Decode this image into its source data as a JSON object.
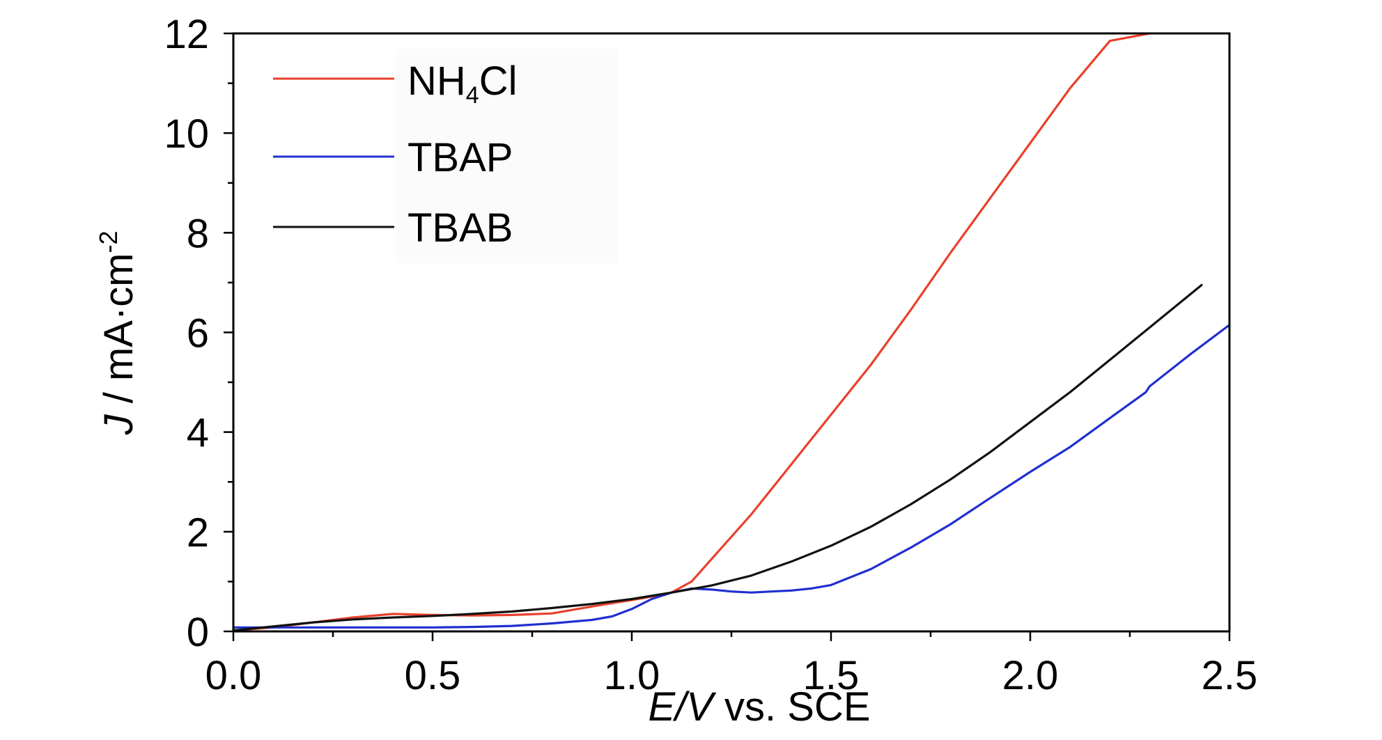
{
  "chart_data": {
    "type": "line",
    "title": "",
    "xlabel": {
      "italic": "E/V",
      "rest": " vs. SCE"
    },
    "ylabel": {
      "italic": "J",
      "rest": " / mA·cm",
      "sup": "-2"
    },
    "xlim": [
      0,
      2.5
    ],
    "ylim": [
      0,
      12
    ],
    "xticks": [
      0.0,
      0.5,
      1.0,
      1.5,
      2.0,
      2.5
    ],
    "xtick_labels": [
      "0.0",
      "0.5",
      "1.0",
      "1.5",
      "2.0",
      "2.5"
    ],
    "yticks": [
      0,
      2,
      4,
      6,
      8,
      10,
      12
    ],
    "ytick_labels": [
      "0",
      "2",
      "4",
      "6",
      "8",
      "10",
      "12"
    ],
    "grid": false,
    "legend_position": "top-left",
    "series": [
      {
        "name": "NH₄Cl",
        "label_main": "NH",
        "label_sub": "4",
        "label_tail": "Cl",
        "color": "#e8412c",
        "x": [
          0.0,
          0.1,
          0.2,
          0.3,
          0.4,
          0.5,
          0.6,
          0.7,
          0.8,
          0.9,
          1.0,
          1.05,
          1.1,
          1.15,
          1.2,
          1.3,
          1.4,
          1.5,
          1.6,
          1.7,
          1.8,
          1.9,
          2.0,
          2.1,
          2.2,
          2.3
        ],
        "y": [
          0.02,
          0.08,
          0.18,
          0.28,
          0.35,
          0.33,
          0.32,
          0.33,
          0.36,
          0.5,
          0.63,
          0.7,
          0.78,
          1.0,
          1.45,
          2.35,
          3.35,
          4.35,
          5.35,
          6.45,
          7.6,
          8.7,
          9.8,
          10.9,
          11.85,
          12.0
        ]
      },
      {
        "name": "TBAP",
        "color": "#1f2fcf",
        "x": [
          0.0,
          0.1,
          0.2,
          0.3,
          0.4,
          0.5,
          0.6,
          0.7,
          0.8,
          0.9,
          0.95,
          1.0,
          1.05,
          1.1,
          1.15,
          1.2,
          1.25,
          1.3,
          1.35,
          1.4,
          1.45,
          1.5,
          1.6,
          1.7,
          1.8,
          1.9,
          2.0,
          2.1,
          2.2,
          2.29,
          2.3,
          2.4,
          2.5
        ],
        "y": [
          0.08,
          0.08,
          0.08,
          0.08,
          0.08,
          0.08,
          0.09,
          0.11,
          0.16,
          0.23,
          0.3,
          0.45,
          0.65,
          0.78,
          0.86,
          0.84,
          0.8,
          0.78,
          0.8,
          0.82,
          0.86,
          0.93,
          1.25,
          1.68,
          2.15,
          2.68,
          3.2,
          3.7,
          4.28,
          4.8,
          4.92,
          5.55,
          6.15
        ]
      },
      {
        "name": "TBAB",
        "color": "#111111",
        "x": [
          0.0,
          0.1,
          0.2,
          0.3,
          0.4,
          0.5,
          0.6,
          0.7,
          0.8,
          0.9,
          1.0,
          1.1,
          1.2,
          1.3,
          1.4,
          1.5,
          1.6,
          1.7,
          1.8,
          1.9,
          2.0,
          2.1,
          2.2,
          2.3,
          2.43
        ],
        "y": [
          0.02,
          0.1,
          0.18,
          0.24,
          0.28,
          0.31,
          0.35,
          0.4,
          0.47,
          0.55,
          0.65,
          0.78,
          0.92,
          1.12,
          1.4,
          1.72,
          2.1,
          2.55,
          3.05,
          3.6,
          4.2,
          4.8,
          5.45,
          6.1,
          6.95
        ]
      }
    ]
  }
}
